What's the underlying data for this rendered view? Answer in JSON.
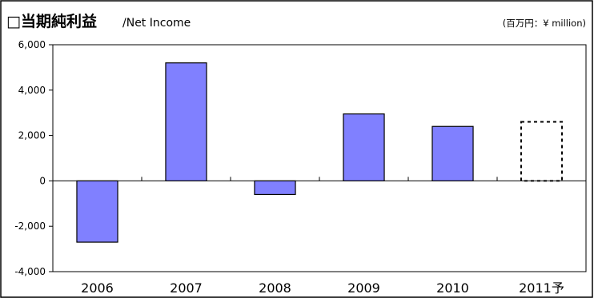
{
  "chart_data": {
    "type": "bar",
    "title": "□当期純利益",
    "subtitle": "/Net Income",
    "unit_label": "(百万円：¥ million)",
    "categories": [
      "2006",
      "2007",
      "2008",
      "2009",
      "2010",
      "2011予"
    ],
    "values": [
      -2700,
      5200,
      -600,
      2950,
      2400,
      2600
    ],
    "forecast": [
      false,
      false,
      false,
      false,
      false,
      true
    ],
    "ylim": [
      -4000,
      6000
    ],
    "yticks": [
      6000,
      4000,
      2000,
      0,
      -2000,
      -4000
    ],
    "ytick_labels": [
      "6,000",
      "4,000",
      "2,000",
      "0",
      "-2,000",
      "-4,000"
    ],
    "grid": false,
    "bar_color": "#8080ff",
    "xlabel": "",
    "ylabel": ""
  }
}
